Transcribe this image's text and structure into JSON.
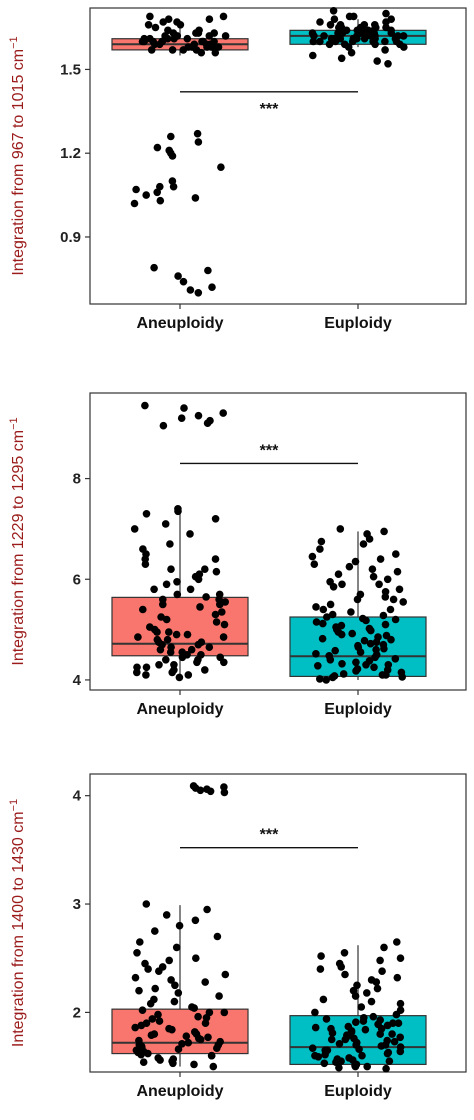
{
  "colors": {
    "aneuploidy": "#f8766d",
    "euploidy": "#00bfc4",
    "point": "#000000",
    "frame": "#333333"
  },
  "chart_data": [
    {
      "type": "box",
      "ylabel_main": "Integration from 967 to 1015 cm",
      "ylabel_sup": "−1",
      "categories": [
        "Aneuploidy",
        "Euploidy"
      ],
      "yticks": [
        0.9,
        1.2,
        1.5
      ],
      "ytick_labels": [
        "0.9",
        "1.2",
        "1.5"
      ],
      "ylim": [
        0.66,
        1.72
      ],
      "significance": "***",
      "sig_y": 1.42,
      "boxes": [
        {
          "min": 1.55,
          "q1": 1.57,
          "median": 1.59,
          "q3": 1.61,
          "max": 1.65
        },
        {
          "min": 1.58,
          "q1": 1.59,
          "median": 1.62,
          "q3": 1.64,
          "max": 1.68
        }
      ],
      "points": [
        [
          1.59,
          1.6,
          1.58,
          1.62,
          1.57,
          1.63,
          1.61,
          1.56,
          1.64,
          1.59,
          1.6,
          1.62,
          1.58,
          1.57,
          1.61,
          1.65,
          1.6,
          1.59,
          1.63,
          1.58,
          1.6,
          1.62,
          1.56,
          1.61,
          1.59,
          1.64,
          1.58,
          1.6,
          1.57,
          1.63,
          1.68,
          1.69,
          1.66,
          1.67,
          1.68,
          1.66,
          1.69,
          1.67,
          1.6,
          1.59,
          1.61,
          1.58,
          1.62,
          1.6,
          1.57,
          1.59,
          1.63,
          1.61,
          1.58,
          1.6,
          1.27,
          1.26,
          1.24,
          1.22,
          1.21,
          1.2,
          1.19,
          1.15,
          1.08,
          1.07,
          1.06,
          1.05,
          1.04,
          1.02,
          1.03,
          1.08,
          1.1,
          0.79,
          0.78,
          0.76,
          0.74,
          0.72,
          0.71,
          0.7
        ],
        [
          1.62,
          1.63,
          1.61,
          1.64,
          1.6,
          1.65,
          1.62,
          1.59,
          1.66,
          1.63,
          1.61,
          1.64,
          1.6,
          1.62,
          1.63,
          1.58,
          1.65,
          1.61,
          1.63,
          1.6,
          1.62,
          1.64,
          1.59,
          1.66,
          1.62,
          1.63,
          1.61,
          1.65,
          1.6,
          1.62,
          1.67,
          1.68,
          1.69,
          1.7,
          1.66,
          1.68,
          1.71,
          1.67,
          1.69,
          1.56,
          1.55,
          1.54,
          1.53,
          1.52,
          1.57,
          1.58,
          1.62,
          1.64,
          1.61,
          1.63,
          1.6,
          1.65,
          1.62,
          1.59,
          1.64,
          1.61,
          1.63,
          1.6,
          1.66,
          1.62,
          1.64,
          1.61,
          1.63,
          1.6,
          1.65,
          1.62,
          1.59,
          1.64,
          1.61,
          1.63
        ]
      ]
    },
    {
      "type": "box",
      "ylabel_main": "Integration from 1229 to 1295 cm",
      "ylabel_sup": "−1",
      "categories": [
        "Aneuploidy",
        "Euploidy"
      ],
      "yticks": [
        4,
        6,
        8
      ],
      "ytick_labels": [
        "4",
        "6",
        "8"
      ],
      "ylim": [
        3.8,
        9.7
      ],
      "significance": "***",
      "sig_y": 8.3,
      "boxes": [
        {
          "min": 4.05,
          "q1": 4.48,
          "median": 4.72,
          "q3": 5.64,
          "max": 7.4
        },
        {
          "min": 4.0,
          "q1": 4.07,
          "median": 4.47,
          "q3": 5.25,
          "max": 6.95
        }
      ],
      "points": [
        [
          9.45,
          9.4,
          9.3,
          9.25,
          9.2,
          9.15,
          9.1,
          9.05,
          7.4,
          7.35,
          7.3,
          7.2,
          7.1,
          7.0,
          6.9,
          6.7,
          6.6,
          6.5,
          6.4,
          6.3,
          6.2,
          6.1,
          6.0,
          5.9,
          5.8,
          5.7,
          5.6,
          5.5,
          5.4,
          5.3,
          5.2,
          5.1,
          5.0,
          4.95,
          4.9,
          4.85,
          4.8,
          4.75,
          4.7,
          4.65,
          4.6,
          4.55,
          4.5,
          4.45,
          4.4,
          4.35,
          4.3,
          4.25,
          4.2,
          4.15,
          4.1,
          4.05,
          4.9,
          4.8,
          4.7,
          4.6,
          4.5,
          4.4,
          4.3,
          4.2,
          4.1,
          5.6,
          5.5,
          5.7,
          5.8,
          6.2,
          6.4,
          4.75,
          4.85,
          4.65,
          4.55,
          4.45,
          4.35,
          4.25,
          4.15,
          4.95,
          5.05,
          5.15,
          5.25,
          5.35,
          5.45,
          5.55,
          5.65,
          5.95,
          6.05,
          6.15
        ],
        [
          7.0,
          6.95,
          6.9,
          6.8,
          6.7,
          6.6,
          6.5,
          6.4,
          6.3,
          6.2,
          6.1,
          6.0,
          5.9,
          5.8,
          5.7,
          5.6,
          5.5,
          5.4,
          5.3,
          5.2,
          5.1,
          5.0,
          4.9,
          4.8,
          4.7,
          4.6,
          4.5,
          4.4,
          4.3,
          4.2,
          4.1,
          4.05,
          4.0,
          4.02,
          4.08,
          4.12,
          4.18,
          4.22,
          4.28,
          4.32,
          4.38,
          4.42,
          4.48,
          4.52,
          4.58,
          4.62,
          4.68,
          4.72,
          4.78,
          4.82,
          4.88,
          4.92,
          4.98,
          5.02,
          5.08,
          5.12,
          5.18,
          5.22,
          5.28,
          5.35,
          5.45,
          5.55,
          5.65,
          5.75,
          5.85,
          5.95,
          6.05,
          6.15,
          6.25,
          6.35,
          4.15,
          4.25,
          4.35,
          4.45,
          4.55,
          4.65,
          4.75,
          4.85,
          4.95,
          5.05,
          5.15,
          5.25,
          5.4,
          5.6,
          5.9,
          6.45,
          6.75,
          4.06,
          4.1,
          4.3
        ]
      ]
    },
    {
      "type": "box",
      "ylabel_main": "Integration from 1400 to 1430 cm",
      "ylabel_sup": "−1",
      "categories": [
        "Aneuploidy",
        "Euploidy"
      ],
      "yticks": [
        2,
        3,
        4
      ],
      "ytick_labels": [
        "2",
        "3",
        "4"
      ],
      "ylim": [
        1.45,
        4.2
      ],
      "significance": "***",
      "sig_y": 3.52,
      "boxes": [
        {
          "min": 1.5,
          "q1": 1.62,
          "median": 1.72,
          "q3": 2.03,
          "max": 2.99
        },
        {
          "min": 1.48,
          "q1": 1.52,
          "median": 1.68,
          "q3": 1.97,
          "max": 2.62
        }
      ],
      "points": [
        [
          4.08,
          4.06,
          4.05,
          4.04,
          4.03,
          4.09,
          4.07,
          3.0,
          2.95,
          2.9,
          2.85,
          2.8,
          2.7,
          2.6,
          2.55,
          2.5,
          2.45,
          2.4,
          2.35,
          2.3,
          2.25,
          2.2,
          2.15,
          2.1,
          2.05,
          2.0,
          1.95,
          1.9,
          1.85,
          1.8,
          1.75,
          1.7,
          1.65,
          1.6,
          1.55,
          1.5,
          1.52,
          1.58,
          1.62,
          1.68,
          1.72,
          1.78,
          1.82,
          1.88,
          1.92,
          1.98,
          2.02,
          2.08,
          1.54,
          1.56,
          1.6,
          1.64,
          1.66,
          1.7,
          1.74,
          1.76,
          1.8,
          1.84,
          1.86,
          1.9,
          1.94,
          1.96,
          2.0,
          2.04,
          2.12,
          2.18,
          2.22,
          2.28,
          2.32,
          2.38,
          2.42,
          2.48,
          1.53,
          1.57,
          1.61,
          1.63,
          1.67,
          1.69,
          1.71,
          1.73,
          1.77,
          1.79,
          2.65,
          2.75
        ],
        [
          2.65,
          2.6,
          2.55,
          2.5,
          2.45,
          2.4,
          2.35,
          2.3,
          2.25,
          2.2,
          2.15,
          2.1,
          2.05,
          2.0,
          1.95,
          1.9,
          1.85,
          1.8,
          1.75,
          1.7,
          1.65,
          1.6,
          1.55,
          1.5,
          1.48,
          1.52,
          1.58,
          1.62,
          1.68,
          1.72,
          1.78,
          1.82,
          1.88,
          1.92,
          1.98,
          2.02,
          2.08,
          2.12,
          2.18,
          2.22,
          1.49,
          1.51,
          1.53,
          1.55,
          1.57,
          1.59,
          1.61,
          1.63,
          1.65,
          1.67,
          1.69,
          1.71,
          1.73,
          1.75,
          1.77,
          1.79,
          1.81,
          1.83,
          1.85,
          1.87,
          1.89,
          1.91,
          1.93,
          1.96,
          2.28,
          2.32,
          2.38,
          2.42,
          2.48,
          2.52,
          1.5,
          1.54,
          1.56,
          1.6,
          1.64,
          1.66,
          1.7,
          1.74,
          1.76,
          1.8,
          1.84,
          1.86,
          1.9,
          1.94
        ]
      ]
    }
  ]
}
